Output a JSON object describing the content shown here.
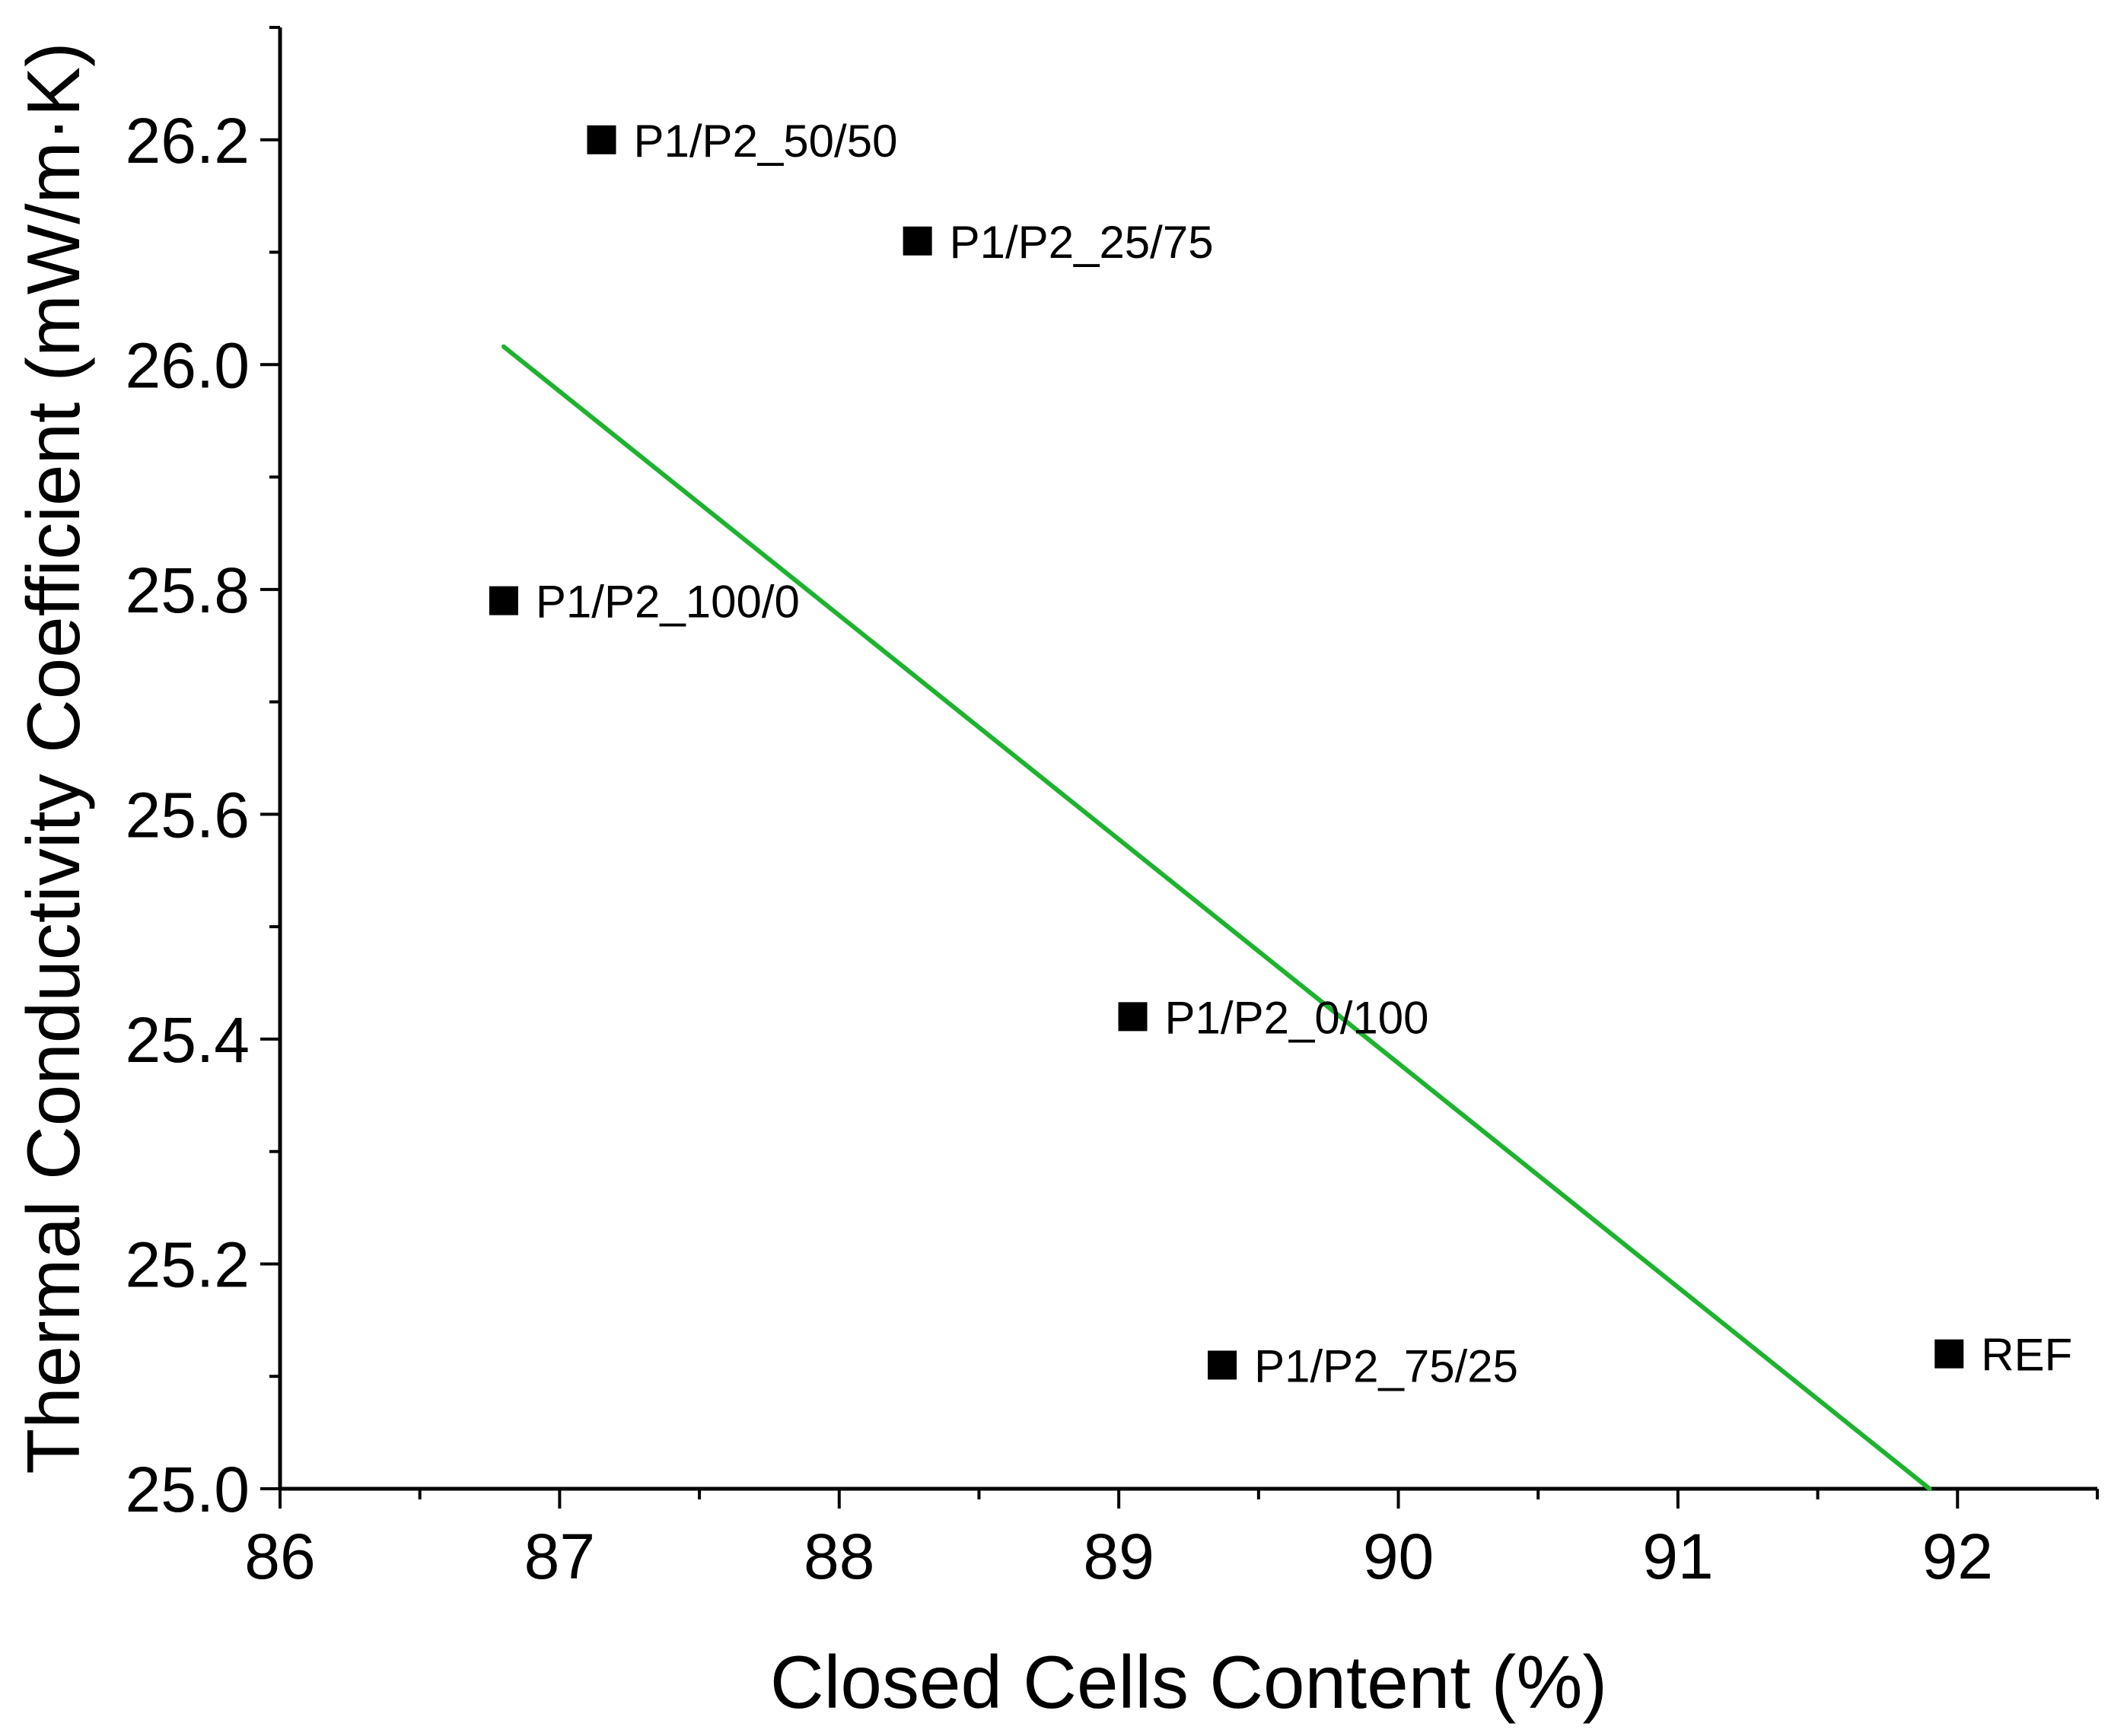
{
  "chart_data": {
    "type": "scatter",
    "title": "",
    "xlabel": "Closed Cells Content (%)",
    "ylabel": "Thermal Conductivity Coefficient (mW/m·K)",
    "xlim": [
      86,
      92.5
    ],
    "ylim": [
      25.0,
      26.3
    ],
    "x_ticks": [
      "86",
      "87",
      "88",
      "89",
      "90",
      "91",
      "92"
    ],
    "y_ticks": [
      "25.0",
      "25.2",
      "25.4",
      "25.6",
      "25.8",
      "26.0",
      "26.2"
    ],
    "grid": false,
    "points": [
      {
        "label": "P1/P2_50/50",
        "x": 87.15,
        "y": 26.2
      },
      {
        "label": "P1/P2_25/75",
        "x": 88.28,
        "y": 26.11
      },
      {
        "label": "P1/P2_100/0",
        "x": 86.8,
        "y": 25.79
      },
      {
        "label": "P1/P2_0/100",
        "x": 89.05,
        "y": 25.42
      },
      {
        "label": "P1/P2_75/25",
        "x": 89.37,
        "y": 25.11
      },
      {
        "label": "REF",
        "x": 91.97,
        "y": 25.12
      }
    ],
    "fit_line": {
      "x": [
        86.8,
        91.9
      ],
      "y": [
        26.016,
        25.0
      ]
    },
    "colors": {
      "marker": "#000000",
      "fit_line": "#1db32e",
      "axis": "#000000"
    }
  }
}
